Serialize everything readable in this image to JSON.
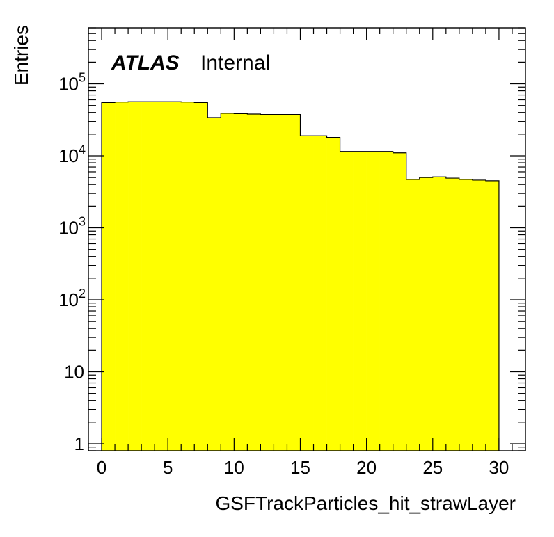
{
  "chart_data": {
    "type": "bar",
    "histogram_style": "step",
    "bin_width": 1,
    "x_bins": [
      0,
      1,
      2,
      3,
      4,
      5,
      6,
      7,
      8,
      9,
      10,
      11,
      12,
      13,
      14,
      15,
      16,
      17,
      18,
      19,
      20,
      21,
      22,
      23,
      24,
      25,
      26,
      27,
      28,
      29
    ],
    "values": [
      55000,
      56000,
      56500,
      56500,
      56500,
      56500,
      56000,
      55000,
      34000,
      39000,
      38500,
      38000,
      37500,
      37500,
      37500,
      19000,
      19000,
      18000,
      11500,
      11500,
      11500,
      11500,
      11000,
      4700,
      5000,
      5100,
      4900,
      4700,
      4600,
      4500
    ],
    "fill_color": "#ffff00",
    "line_color": "#000000",
    "xlabel": "GSFTrackParticles_hit_strawLayer",
    "ylabel": "Entries",
    "x_ticks": [
      "0",
      "5",
      "10",
      "15",
      "20",
      "25",
      "30"
    ],
    "y_scale": "log",
    "xlim": [
      -1,
      32
    ],
    "ylim": [
      0.8,
      600000
    ]
  },
  "labels": {
    "atlas": "ATLAS",
    "internal": "Internal"
  }
}
